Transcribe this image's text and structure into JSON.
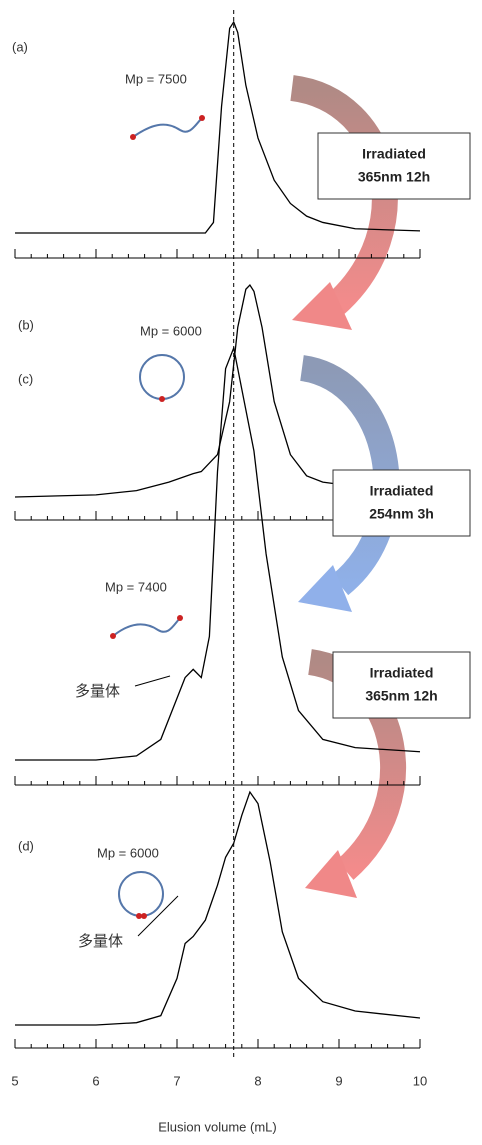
{
  "chart_data": [
    {
      "type": "line",
      "label": "(a)",
      "mp_label": "Mp = 7500",
      "color": "#000000",
      "x": [
        5,
        7.35,
        7.45,
        7.55,
        7.65,
        7.7,
        7.75,
        7.85,
        8.0,
        8.2,
        8.4,
        8.6,
        8.8,
        9.2,
        10
      ],
      "values": [
        0,
        0,
        0.05,
        0.6,
        0.97,
        1.0,
        0.95,
        0.7,
        0.45,
        0.25,
        0.14,
        0.08,
        0.05,
        0.02,
        0.01
      ],
      "xlim": [
        5,
        10
      ],
      "xticks": [
        5,
        6,
        7,
        8,
        9,
        10
      ],
      "ylim": [
        0,
        1
      ]
    },
    {
      "type": "line",
      "label": "(b)",
      "mp_label": "Mp = 6000",
      "color": "#000000",
      "x": [
        5,
        6.0,
        6.5,
        6.9,
        7.2,
        7.3,
        7.5,
        7.65,
        7.75,
        7.85,
        7.9,
        7.95,
        8.05,
        8.2,
        8.4,
        8.6,
        8.8,
        9.2,
        10
      ],
      "values": [
        0,
        0.01,
        0.03,
        0.07,
        0.11,
        0.12,
        0.2,
        0.45,
        0.8,
        0.98,
        1.0,
        0.97,
        0.8,
        0.45,
        0.2,
        0.1,
        0.07,
        0.05,
        0.04
      ],
      "xlim": [
        5,
        10
      ],
      "xticks": [
        5,
        6,
        7,
        8,
        9,
        10
      ],
      "ylim": [
        0,
        1
      ]
    },
    {
      "type": "line",
      "label": "(c)",
      "mp_label": "Mp = 7400",
      "annotation": "多量体",
      "color": "#000000",
      "x": [
        5,
        6,
        6.5,
        6.8,
        7.0,
        7.1,
        7.2,
        7.3,
        7.4,
        7.5,
        7.6,
        7.7,
        7.8,
        7.95,
        8.1,
        8.3,
        8.5,
        8.8,
        9.2,
        10
      ],
      "values": [
        0,
        0,
        0.01,
        0.05,
        0.15,
        0.2,
        0.22,
        0.2,
        0.3,
        0.7,
        0.95,
        1.0,
        0.9,
        0.75,
        0.5,
        0.25,
        0.12,
        0.05,
        0.03,
        0.02
      ],
      "xlim": [
        5,
        10
      ],
      "xticks": [
        5,
        6,
        7,
        8,
        9,
        10
      ],
      "ylim": [
        0,
        1
      ]
    },
    {
      "type": "line",
      "label": "(d)",
      "mp_label": "Mp = 6000",
      "annotation": "多量体",
      "color": "#000000",
      "x": [
        5,
        6,
        6.5,
        6.8,
        7.0,
        7.1,
        7.2,
        7.35,
        7.5,
        7.6,
        7.7,
        7.8,
        7.9,
        8.0,
        8.15,
        8.3,
        8.5,
        8.8,
        9.2,
        10
      ],
      "values": [
        0,
        0,
        0.01,
        0.04,
        0.2,
        0.35,
        0.38,
        0.45,
        0.6,
        0.72,
        0.78,
        0.9,
        1.0,
        0.95,
        0.7,
        0.4,
        0.2,
        0.1,
        0.06,
        0.03
      ],
      "xlim": [
        5,
        10
      ],
      "xticks": [
        5,
        6,
        7,
        8,
        9,
        10
      ],
      "ylim": [
        0,
        1
      ],
      "xlabel": "Elusion volume (mL)"
    }
  ],
  "reference_x": 7.7,
  "steps": [
    {
      "line1": "Irradiated",
      "line2": "365nm 12h"
    },
    {
      "line1": "Irradiated",
      "line2": "254nm 3h"
    },
    {
      "line1": "Irradiated",
      "line2": "365nm 12h"
    }
  ]
}
